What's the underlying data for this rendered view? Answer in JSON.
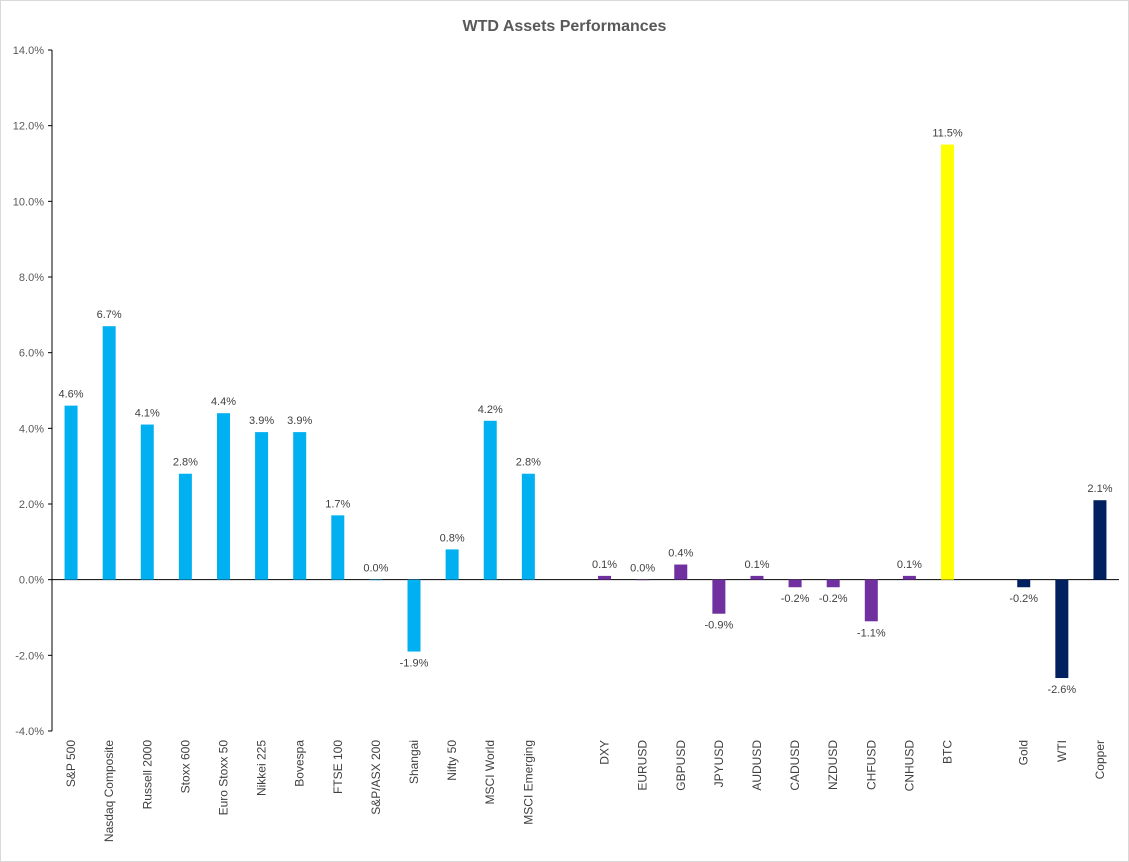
{
  "chart_data": {
    "type": "bar",
    "title": "WTD Assets Performances",
    "xlabel": "",
    "ylabel": "",
    "ylim": [
      -0.04,
      0.14
    ],
    "yticks": [
      "14.0%",
      "12.0%",
      "10.0%",
      "8.0%",
      "6.0%",
      "4.0%",
      "2.0%",
      "0.0%",
      "-2.0%",
      "-4.0%"
    ],
    "grid": false,
    "legend": "none",
    "colors": {
      "equity": "#00b0f0",
      "fx": "#7030a0",
      "crypto": "#ffff00",
      "commodity": "#002060",
      "axis": "#000000",
      "text": "#595959"
    },
    "categories": [
      "S&P 500",
      "Nasdaq Composite",
      "Russell 2000",
      "Stoxx 600",
      "Euro Stoxx 50",
      "Nikkei 225",
      "Bovespa",
      "FTSE 100",
      "S&P/ASX 200",
      "Shangai",
      "Nifty 50",
      "MSCI World",
      "MSCI Emerging",
      "",
      "DXY",
      "EURUSD",
      "GBPUSD",
      "JPYUSD",
      "AUDUSD",
      "CADUSD",
      "NZDUSD",
      "CHFUSD",
      "CNHUSD",
      "BTC",
      "",
      "Gold",
      "WTI",
      "Copper"
    ],
    "values": [
      0.046,
      0.067,
      0.041,
      0.028,
      0.044,
      0.039,
      0.039,
      0.017,
      0.0,
      -0.019,
      0.008,
      0.042,
      0.028,
      null,
      0.001,
      0.0,
      0.004,
      -0.009,
      0.001,
      -0.002,
      -0.002,
      -0.011,
      0.001,
      0.115,
      null,
      -0.002,
      -0.026,
      0.021
    ],
    "data_labels": [
      "4.6%",
      "6.7%",
      "4.1%",
      "2.8%",
      "4.4%",
      "3.9%",
      "3.9%",
      "1.7%",
      "0.0%",
      "-1.9%",
      "0.8%",
      "4.2%",
      "2.8%",
      "",
      "0.1%",
      "0.0%",
      "0.4%",
      "-0.9%",
      "0.1%",
      "-0.2%",
      "-0.2%",
      "-1.1%",
      "0.1%",
      "11.5%",
      "",
      "-0.2%",
      "-2.6%",
      "2.1%"
    ],
    "groups": [
      "equity",
      "equity",
      "equity",
      "equity",
      "equity",
      "equity",
      "equity",
      "equity",
      "equity",
      "equity",
      "equity",
      "equity",
      "equity",
      "gap",
      "fx",
      "fx",
      "fx",
      "fx",
      "fx",
      "fx",
      "fx",
      "fx",
      "fx",
      "crypto",
      "gap",
      "commodity",
      "commodity",
      "commodity"
    ]
  }
}
